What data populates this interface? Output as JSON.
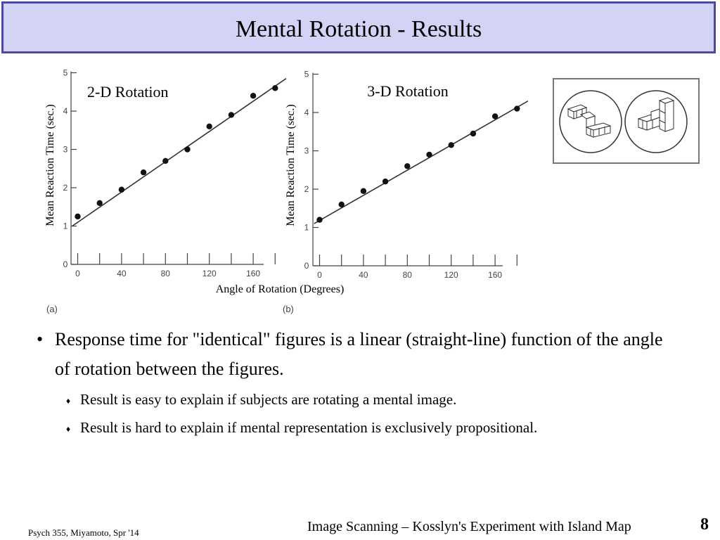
{
  "slide": {
    "title": "Mental Rotation - Results",
    "xlabel": "Angle of Rotation (Degrees)",
    "bullets": {
      "main": "Response time for \"identical\" figures is a linear (straight-line) function of the angle of rotation between the figures.",
      "sub": [
        "Result is easy to explain if subjects are rotating a mental image.",
        "Result is hard to explain if mental representation is exclusively propositional."
      ],
      "sub_marker": "♦",
      "main_marker": "•"
    },
    "footer": {
      "left": "Psych 355, Miyamoto, Spr '14",
      "center": "Image Scanning – Kosslyn's Experiment with Island Map",
      "page": "8"
    },
    "figure_icons": [
      "3d-block-figure-left-icon",
      "3d-block-figure-right-icon"
    ]
  },
  "chart_data": [
    {
      "type": "scatter",
      "title": "2-D Rotation",
      "panel_label": "(a)",
      "xlabel": "Angle of Rotation (Degrees)",
      "ylabel": "Mean Reaction Time (sec.)",
      "xlim": [
        -5,
        190
      ],
      "ylim": [
        0,
        5
      ],
      "xticks": [
        0,
        40,
        80,
        120,
        160
      ],
      "yticks": [
        0,
        1,
        2,
        3,
        4,
        5
      ],
      "x": [
        0,
        20,
        40,
        60,
        80,
        100,
        120,
        140,
        160,
        180
      ],
      "y": [
        1.25,
        1.6,
        1.95,
        2.4,
        2.7,
        3.0,
        3.6,
        3.9,
        4.4,
        4.6
      ],
      "fit_line": {
        "x": [
          -5,
          190
        ],
        "y": [
          1.0,
          4.85
        ]
      }
    },
    {
      "type": "scatter",
      "title": "3-D Rotation",
      "panel_label": "(b)",
      "xlabel": "Angle of Rotation (Degrees)",
      "ylabel": "Mean Reaction Time (sec.)",
      "xlim": [
        -5,
        190
      ],
      "ylim": [
        0,
        5
      ],
      "xticks": [
        0,
        40,
        80,
        120,
        160
      ],
      "yticks": [
        0,
        1,
        2,
        3,
        4,
        5
      ],
      "x": [
        0,
        20,
        40,
        60,
        80,
        100,
        120,
        140,
        160,
        180
      ],
      "y": [
        1.2,
        1.6,
        1.95,
        2.2,
        2.6,
        2.9,
        3.15,
        3.45,
        3.9,
        4.1
      ],
      "fit_line": {
        "x": [
          -5,
          190
        ],
        "y": [
          1.1,
          4.3
        ]
      }
    }
  ]
}
